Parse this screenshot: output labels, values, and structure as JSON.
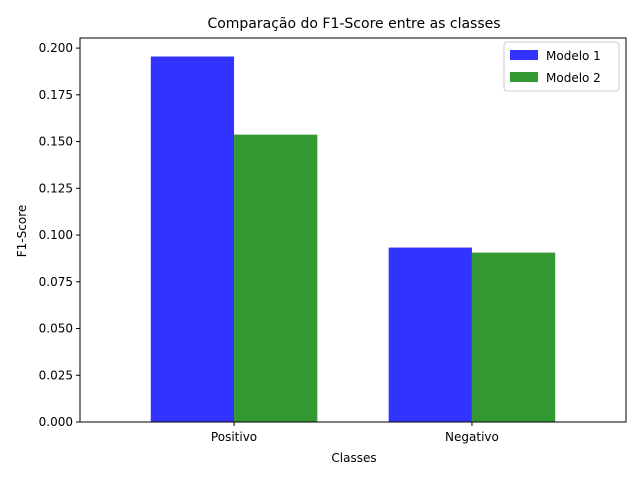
{
  "chart_data": {
    "type": "bar",
    "title": "Comparação do F1-Score entre as classes",
    "xlabel": "Classes",
    "ylabel": "F1-Score",
    "categories": [
      "Positivo",
      "Negativo"
    ],
    "series": [
      {
        "name": "Modelo 1",
        "values": [
          0.1955,
          0.0933
        ],
        "color": "#3333ff"
      },
      {
        "name": "Modelo 2",
        "values": [
          0.1537,
          0.0906
        ],
        "color": "#339933"
      }
    ],
    "ylim": [
      0,
      0.2054
    ],
    "yticks": [
      "0.000",
      "0.025",
      "0.050",
      "0.075",
      "0.100",
      "0.125",
      "0.150",
      "0.175",
      "0.200"
    ],
    "legend_position": "top-right",
    "grid": false
  }
}
